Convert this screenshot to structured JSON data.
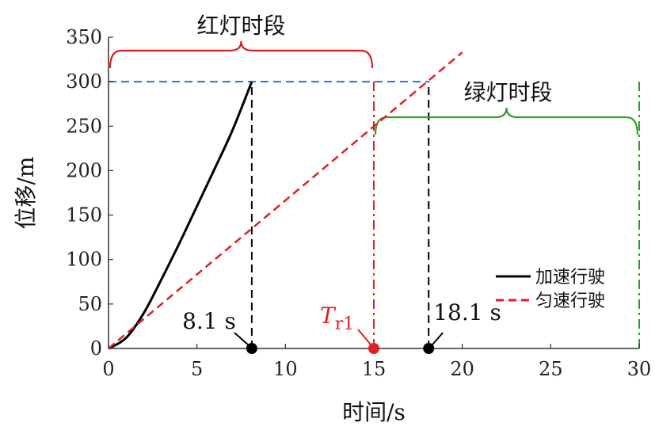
{
  "chart_data": {
    "type": "line",
    "xlabel": "时间/s",
    "ylabel": "位移/m",
    "xlim": [
      0,
      30
    ],
    "ylim": [
      0,
      350
    ],
    "x_ticks": [
      0,
      5,
      10,
      15,
      20,
      25,
      30
    ],
    "y_ticks": [
      0,
      50,
      100,
      150,
      200,
      250,
      300,
      350
    ],
    "grid": false,
    "legend_position": "right",
    "series": [
      {
        "name": "加速行驶",
        "style": "solid",
        "color": "#000000",
        "x": [
          0,
          1,
          2,
          3,
          4,
          5,
          6,
          7,
          8.1
        ],
        "y": [
          0,
          12,
          40,
          78,
          118,
          160,
          202,
          245,
          300
        ]
      },
      {
        "name": "匀速行驶",
        "style": "dashed",
        "color": "#e02020",
        "x": [
          0,
          20
        ],
        "y": [
          0,
          333
        ]
      }
    ],
    "reference_lines": [
      {
        "kind": "horizontal",
        "y": 300,
        "x_from": 0,
        "x_to": 18.1,
        "color": "#2f6fd8",
        "style": "dashed"
      },
      {
        "kind": "vertical",
        "x": 8.1,
        "y_from": 0,
        "y_to": 300,
        "color": "#000000",
        "style": "dashed"
      },
      {
        "kind": "vertical",
        "x": 18.1,
        "y_from": 0,
        "y_to": 300,
        "color": "#000000",
        "style": "dashed"
      },
      {
        "kind": "vertical",
        "x": 15,
        "y_from": 0,
        "y_to": 300,
        "color": "#e02020",
        "style": "dashdot"
      },
      {
        "kind": "vertical",
        "x": 30,
        "y_from": 0,
        "y_to": 300,
        "color": "#2aa02a",
        "style": "dashdot"
      }
    ],
    "braces": [
      {
        "label": "红灯时段",
        "x_from": 0,
        "x_to": 15,
        "y": 335,
        "color": "#e02020"
      },
      {
        "label": "绿灯时段",
        "x_from": 15,
        "x_to": 30,
        "y": 260,
        "color": "#2aa02a"
      }
    ],
    "markers": [
      {
        "x": 8.1,
        "y": 0,
        "color": "#000000",
        "label": "8.1 s"
      },
      {
        "x": 15,
        "y": 0,
        "color": "#e02020",
        "label_main": "T",
        "label_sub": "r1"
      },
      {
        "x": 18.1,
        "y": 0,
        "color": "#000000",
        "label": "18.1 s"
      }
    ]
  }
}
